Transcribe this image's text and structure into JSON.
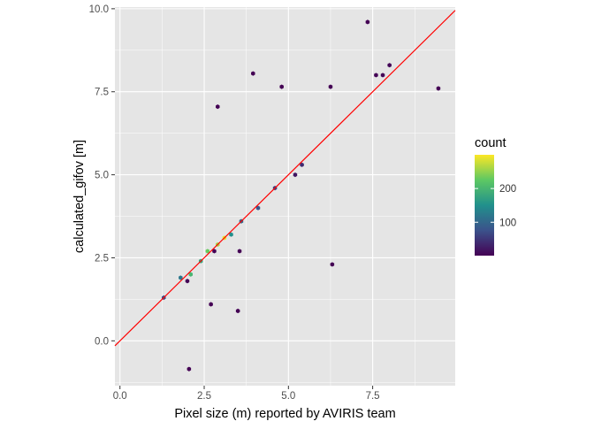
{
  "chart_data": {
    "type": "hexbin",
    "title": "",
    "xlabel": "Pixel size (m) reported by AVIRIS team",
    "ylabel": "calculated_gifov [m]",
    "xlim": [
      -0.15,
      9.95
    ],
    "ylim": [
      -1.35,
      10.05
    ],
    "x_ticks": [
      0.0,
      2.5,
      5.0,
      7.5
    ],
    "x_tick_labels": [
      "0.0",
      "2.5",
      "5.0",
      "7.5"
    ],
    "y_ticks": [
      0.0,
      2.5,
      5.0,
      7.5,
      10.0
    ],
    "y_tick_labels": [
      "0.0",
      "2.5",
      "5.0",
      "7.5",
      "10.0"
    ],
    "grid": true,
    "panel_background": "#e5e5e5",
    "grid_color": "#ffffff",
    "reference_line": {
      "slope": 1,
      "intercept": 0,
      "color": "#ff0000",
      "label": ""
    },
    "legend": {
      "title": "count",
      "position": "right",
      "breaks": [
        100,
        200
      ],
      "break_labels": [
        "100",
        "200"
      ],
      "range": [
        1,
        300
      ],
      "colors": [
        "#440154",
        "#3b528b",
        "#21908c",
        "#5dc863",
        "#fde725"
      ]
    },
    "bins": [
      {
        "x": 2.1,
        "y": 2.0,
        "count": 200
      },
      {
        "x": 2.4,
        "y": 2.4,
        "count": 180
      },
      {
        "x": 2.6,
        "y": 2.7,
        "count": 230
      },
      {
        "x": 2.9,
        "y": 2.9,
        "count": 260
      },
      {
        "x": 3.1,
        "y": 3.1,
        "count": 290
      },
      {
        "x": 3.3,
        "y": 3.2,
        "count": 150
      },
      {
        "x": 1.8,
        "y": 1.9,
        "count": 120
      },
      {
        "x": 3.6,
        "y": 3.6,
        "count": 100
      },
      {
        "x": 4.1,
        "y": 4.0,
        "count": 80
      },
      {
        "x": 4.6,
        "y": 4.6,
        "count": 60
      },
      {
        "x": 1.3,
        "y": 1.3,
        "count": 70
      },
      {
        "x": 5.4,
        "y": 5.3,
        "count": 40
      },
      {
        "x": 5.2,
        "y": 5.0,
        "count": 20
      },
      {
        "x": 7.8,
        "y": 8.0,
        "count": 5
      },
      {
        "x": 7.6,
        "y": 8.0,
        "count": 4
      },
      {
        "x": 8.0,
        "y": 8.3,
        "count": 6
      },
      {
        "x": 2.0,
        "y": 1.8,
        "count": 3
      },
      {
        "x": 2.8,
        "y": 2.7,
        "count": 2
      },
      {
        "x": 9.45,
        "y": 7.6,
        "count": 1
      },
      {
        "x": 7.35,
        "y": 9.6,
        "count": 1
      },
      {
        "x": 3.95,
        "y": 8.05,
        "count": 1
      },
      {
        "x": 2.9,
        "y": 7.05,
        "count": 1
      },
      {
        "x": 2.05,
        "y": -0.85,
        "count": 1
      },
      {
        "x": 3.55,
        "y": 2.7,
        "count": 1
      },
      {
        "x": 6.3,
        "y": 2.3,
        "count": 1
      },
      {
        "x": 2.7,
        "y": 1.1,
        "count": 1
      },
      {
        "x": 3.5,
        "y": 0.9,
        "count": 1
      },
      {
        "x": 4.8,
        "y": 7.65,
        "count": 1
      },
      {
        "x": 6.25,
        "y": 7.65,
        "count": 1
      }
    ]
  }
}
